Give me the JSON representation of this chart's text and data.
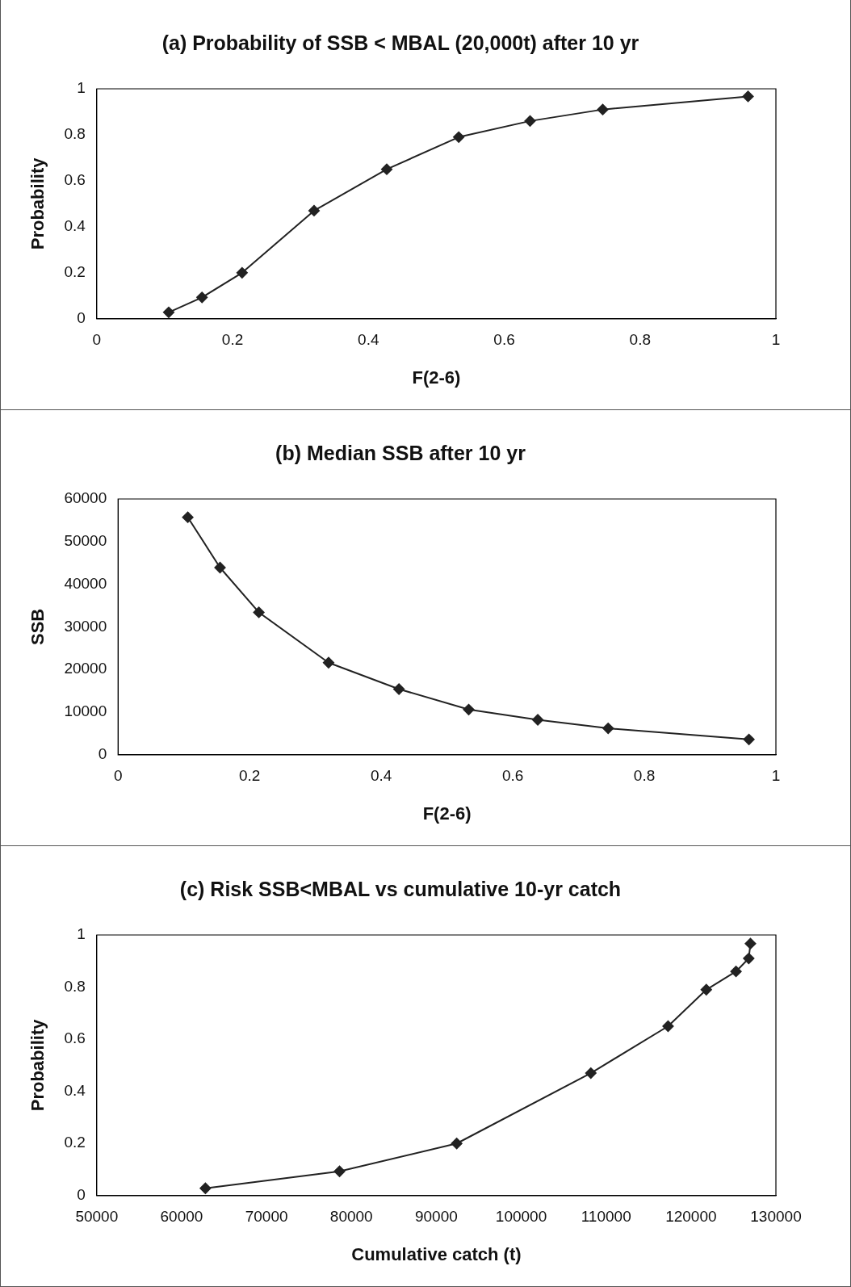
{
  "chart_data": [
    {
      "type": "line",
      "title": "(a) Probability of SSB < MBAL (20,000t) after 10 yr",
      "xlabel": "F(2-6)",
      "ylabel": "Probability",
      "x": [
        0.106,
        0.155,
        0.214,
        0.32,
        0.427,
        0.533,
        0.638,
        0.745,
        0.959
      ],
      "series": [
        {
          "color": "#222222",
          "values": [
            0.028,
            0.093,
            0.2,
            0.47,
            0.65,
            0.79,
            0.86,
            0.91,
            0.967
          ]
        }
      ],
      "xlim": [
        0,
        1
      ],
      "xticks": [
        0,
        0.2,
        0.4,
        0.6,
        0.8,
        1
      ],
      "ylim": [
        0,
        1
      ],
      "yticks": [
        0,
        0.2,
        0.4,
        0.6,
        0.8,
        1
      ],
      "grid": false,
      "legend": false,
      "marker": "diamond",
      "line_style": "solid"
    },
    {
      "type": "line",
      "title": "(b) Median SSB after 10 yr",
      "xlabel": "F(2-6)",
      "ylabel": "SSB",
      "x": [
        0.106,
        0.155,
        0.214,
        0.32,
        0.427,
        0.533,
        0.638,
        0.745,
        0.959
      ],
      "series": [
        {
          "color": "#222222",
          "values": [
            55700,
            43900,
            33400,
            21600,
            15400,
            10600,
            8200,
            6200,
            3600
          ]
        }
      ],
      "xlim": [
        0,
        1
      ],
      "xticks": [
        0,
        0.2,
        0.4,
        0.6,
        0.8,
        1
      ],
      "ylim": [
        0,
        60000
      ],
      "yticks": [
        0,
        10000,
        20000,
        30000,
        40000,
        50000,
        60000
      ],
      "grid": false,
      "legend": false,
      "marker": "diamond",
      "line_style": "solid"
    },
    {
      "type": "line",
      "title": "(c) Risk SSB<MBAL vs cumulative 10-yr catch",
      "xlabel": "Cumulative catch (t)",
      "ylabel": "Probability",
      "x": [
        62800,
        78600,
        92400,
        108200,
        117300,
        121800,
        125300,
        126800,
        127000
      ],
      "series": [
        {
          "color": "#222222",
          "values": [
            0.028,
            0.093,
            0.2,
            0.47,
            0.65,
            0.79,
            0.86,
            0.91,
            0.967
          ]
        }
      ],
      "xlim": [
        50000,
        130000
      ],
      "xticks": [
        50000,
        60000,
        70000,
        80000,
        90000,
        100000,
        110000,
        120000,
        130000
      ],
      "ylim": [
        0,
        1
      ],
      "yticks": [
        0,
        0.2,
        0.4,
        0.6,
        0.8,
        1
      ],
      "grid": false,
      "legend": false,
      "marker": "diamond",
      "line_style": "solid"
    }
  ]
}
